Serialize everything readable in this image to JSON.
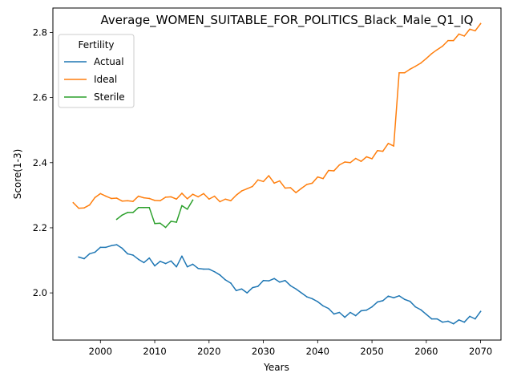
{
  "chart_data": {
    "type": "line",
    "title": "Average_WOMEN_SUITABLE_FOR_POLITICS_Black_Male_Q1_IQ",
    "xlabel": "Years",
    "ylabel": "Score(1-3)",
    "xlim": [
      1991.25,
      2073.75
    ],
    "ylim": [
      1.855,
      2.875
    ],
    "xticks": [
      2000,
      2010,
      2020,
      2030,
      2040,
      2050,
      2060,
      2070
    ],
    "yticks": [
      2.0,
      2.2,
      2.4,
      2.6,
      2.8
    ],
    "xtick_labels": [
      "2000",
      "2010",
      "2020",
      "2030",
      "2040",
      "2050",
      "2060",
      "2070"
    ],
    "ytick_labels": [
      "2.0",
      "2.2",
      "2.4",
      "2.6",
      "2.8"
    ],
    "grid": false,
    "legend": {
      "title": "Fertility",
      "placement": "top-left"
    },
    "series": [
      {
        "name": "Actual",
        "color": "#1f77b4",
        "x": [
          1996,
          1997,
          1998,
          1999,
          2000,
          2001,
          2002,
          2003,
          2004,
          2005,
          2006,
          2007,
          2008,
          2009,
          2010,
          2011,
          2012,
          2013,
          2014,
          2015,
          2016,
          2017,
          2018,
          2019,
          2020,
          2021,
          2022,
          2023,
          2024,
          2025,
          2026,
          2027,
          2028,
          2029,
          2030,
          2031,
          2032,
          2033,
          2034,
          2035,
          2036,
          2037,
          2038,
          2039,
          2040,
          2041,
          2042,
          2043,
          2044,
          2045,
          2046,
          2047,
          2048,
          2049,
          2050,
          2051,
          2052,
          2053,
          2054,
          2055,
          2056,
          2057,
          2058,
          2059,
          2060,
          2061,
          2062,
          2063,
          2064,
          2065,
          2066,
          2067,
          2068,
          2069,
          2070
        ],
        "values": [
          2.11,
          2.105,
          2.12,
          2.125,
          2.14,
          2.14,
          2.145,
          2.148,
          2.137,
          2.12,
          2.116,
          2.103,
          2.093,
          2.107,
          2.083,
          2.097,
          2.09,
          2.098,
          2.08,
          2.113,
          2.08,
          2.088,
          2.075,
          2.073,
          2.073,
          2.065,
          2.055,
          2.04,
          2.03,
          2.007,
          2.012,
          2.0,
          2.016,
          2.02,
          2.038,
          2.037,
          2.044,
          2.033,
          2.038,
          2.022,
          2.012,
          2.0,
          1.988,
          1.982,
          1.973,
          1.96,
          1.952,
          1.935,
          1.94,
          1.925,
          1.94,
          1.93,
          1.945,
          1.947,
          1.957,
          1.972,
          1.976,
          1.99,
          1.985,
          1.991,
          1.98,
          1.974,
          1.957,
          1.948,
          1.934,
          1.92,
          1.92,
          1.91,
          1.913,
          1.905,
          1.917,
          1.91,
          1.928,
          1.92,
          1.943
        ]
      },
      {
        "name": "Ideal",
        "color": "#ff7f0e",
        "x": [
          1995,
          1996,
          1997,
          1998,
          1999,
          2000,
          2001,
          2002,
          2003,
          2004,
          2005,
          2006,
          2007,
          2008,
          2009,
          2010,
          2011,
          2012,
          2013,
          2014,
          2015,
          2016,
          2017,
          2018,
          2019,
          2020,
          2021,
          2022,
          2023,
          2024,
          2025,
          2026,
          2027,
          2028,
          2029,
          2030,
          2031,
          2032,
          2033,
          2034,
          2035,
          2036,
          2037,
          2038,
          2039,
          2040,
          2041,
          2042,
          2043,
          2044,
          2045,
          2046,
          2047,
          2048,
          2049,
          2050,
          2051,
          2052,
          2053,
          2054,
          2055,
          2056,
          2057,
          2058,
          2059,
          2060,
          2061,
          2062,
          2063,
          2064,
          2065,
          2066,
          2067,
          2068,
          2069,
          2070
        ],
        "values": [
          2.277,
          2.26,
          2.261,
          2.27,
          2.293,
          2.305,
          2.297,
          2.29,
          2.291,
          2.282,
          2.283,
          2.281,
          2.297,
          2.292,
          2.29,
          2.284,
          2.283,
          2.294,
          2.295,
          2.288,
          2.306,
          2.289,
          2.303,
          2.295,
          2.305,
          2.288,
          2.297,
          2.28,
          2.288,
          2.283,
          2.3,
          2.313,
          2.32,
          2.327,
          2.347,
          2.342,
          2.36,
          2.337,
          2.344,
          2.322,
          2.323,
          2.308,
          2.321,
          2.333,
          2.337,
          2.356,
          2.351,
          2.376,
          2.375,
          2.393,
          2.402,
          2.4,
          2.413,
          2.404,
          2.418,
          2.412,
          2.437,
          2.435,
          2.459,
          2.451,
          2.676,
          2.676,
          2.687,
          2.696,
          2.706,
          2.72,
          2.735,
          2.747,
          2.758,
          2.775,
          2.775,
          2.795,
          2.789,
          2.81,
          2.805,
          2.827
        ]
      },
      {
        "name": "Sterile",
        "color": "#2ca02c",
        "x": [
          2003,
          2004,
          2005,
          2006,
          2007,
          2008,
          2009,
          2010,
          2011,
          2012,
          2013,
          2014,
          2015,
          2016,
          2017
        ],
        "values": [
          2.226,
          2.239,
          2.247,
          2.247,
          2.262,
          2.262,
          2.262,
          2.213,
          2.214,
          2.201,
          2.22,
          2.217,
          2.268,
          2.257,
          2.285
        ]
      }
    ]
  }
}
